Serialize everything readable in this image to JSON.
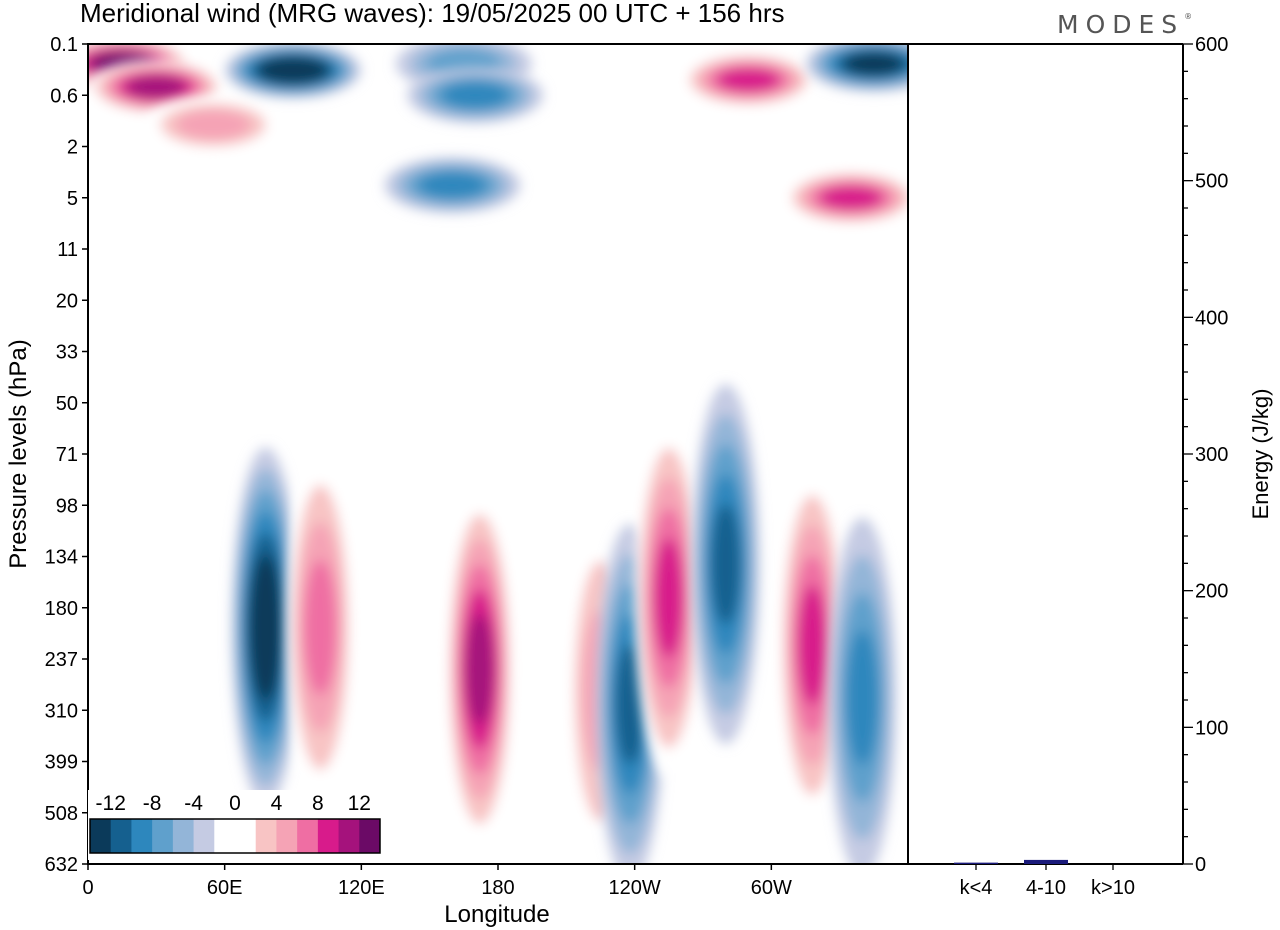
{
  "header": {
    "title": "Meridional wind (MRG waves):  19/05/2025  00 UTC  + 156 hrs",
    "logo": "MODES"
  },
  "chart_data": [
    {
      "type": "heatmap",
      "title": "Meridional wind (MRG waves):  19/05/2025  00 UTC  + 156 hrs",
      "xlabel": "Longitude",
      "ylabel": "Pressure levels (hPa)",
      "x_ticks": [
        "0",
        "60E",
        "120E",
        "180",
        "120W",
        "60W"
      ],
      "y_ticks": [
        "0.1",
        "0.6",
        "2",
        "5",
        "11",
        "20",
        "33",
        "50",
        "71",
        "98",
        "134",
        "180",
        "237",
        "310",
        "399",
        "508",
        "632"
      ],
      "colorbar": {
        "labels": [
          "-12",
          "-8",
          "-4",
          "0",
          "4",
          "8",
          "12"
        ],
        "levels": [
          -14,
          -12,
          -10,
          -8,
          -6,
          -4,
          -2,
          2,
          4,
          6,
          8,
          10,
          12,
          14
        ],
        "colors": [
          "#0b3a5a",
          "#15608f",
          "#2d87bd",
          "#5fa0cc",
          "#93b5d8",
          "#c5cbe3",
          "#ffffff",
          "#ffffff",
          "#f8c4c4",
          "#f5a3b5",
          "#ef6ea3",
          "#d81b8b",
          "#a5127c",
          "#6b0a66"
        ]
      },
      "features": [
        {
          "lon": 15,
          "p": 0.2,
          "value": 16
        },
        {
          "lon": 30,
          "p": 0.45,
          "value": 13
        },
        {
          "lon": 55,
          "p": 1.2,
          "value": 6
        },
        {
          "lon": 90,
          "p": 0.25,
          "value": -14
        },
        {
          "lon": 165,
          "p": 0.2,
          "value": -6
        },
        {
          "lon": 170,
          "p": 0.6,
          "value": -8
        },
        {
          "lon": 160,
          "p": 4,
          "value": -8
        },
        {
          "lon": 290,
          "p": 0.35,
          "value": 10
        },
        {
          "lon": 345,
          "p": 0.2,
          "value": -12
        },
        {
          "lon": 335,
          "p": 5,
          "value": 10
        },
        {
          "lon": 78,
          "p": 200,
          "value": -14
        },
        {
          "lon": 102,
          "p": 200,
          "value": 8
        },
        {
          "lon": 172,
          "p": 250,
          "value": 12
        },
        {
          "lon": 225,
          "p": 280,
          "value": 6
        },
        {
          "lon": 238,
          "p": 300,
          "value": -10
        },
        {
          "lon": 255,
          "p": 170,
          "value": 10
        },
        {
          "lon": 280,
          "p": 140,
          "value": -10
        },
        {
          "lon": 318,
          "p": 220,
          "value": 10
        },
        {
          "lon": 340,
          "p": 290,
          "value": -8
        }
      ]
    },
    {
      "type": "bar",
      "categories": [
        "k<4",
        "4-10",
        "k>10"
      ],
      "values": [
        1,
        3,
        0
      ],
      "ylabel": "Energy (J/kg)",
      "ylim": [
        0,
        600
      ],
      "y_ticks": [
        "0",
        "100",
        "200",
        "300",
        "400",
        "500",
        "600"
      ],
      "bar_color": "#1a1a7a"
    }
  ]
}
